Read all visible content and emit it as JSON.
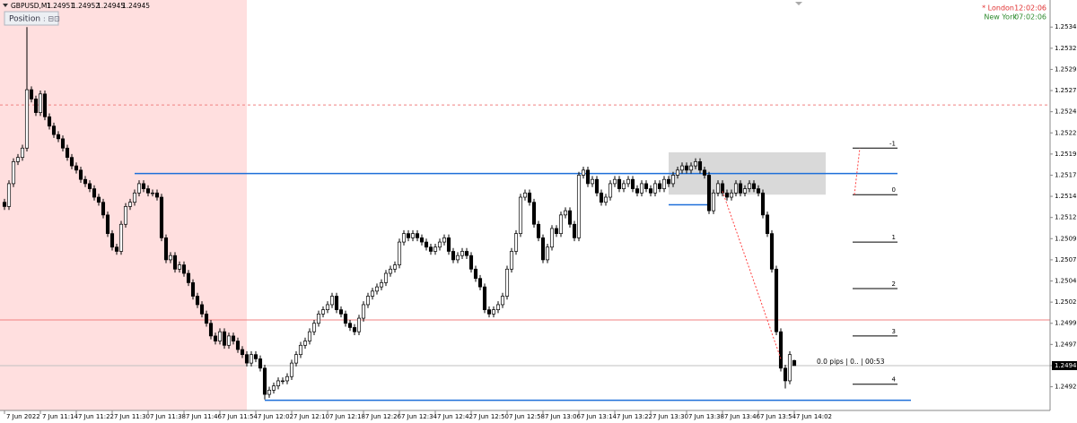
{
  "chart_data": {
    "type": "candlestick",
    "title": "GBPUSD,M1",
    "categories": [
      "7 Jun 2022",
      null,
      null,
      null,
      null,
      null,
      null,
      null,
      "7 Jun 11:14",
      null,
      null,
      null,
      null,
      null,
      null,
      null,
      "7 Jun 11:22",
      null,
      null,
      null,
      null,
      null,
      null,
      null,
      "7 Jun 11:30",
      null,
      null,
      null,
      null,
      null,
      null,
      null,
      "7 Jun 11:38",
      null,
      null,
      null,
      null,
      null,
      null,
      null,
      "7 Jun 11:46",
      null,
      null,
      null,
      null,
      null,
      null,
      null,
      "7 Jun 11:54",
      null,
      null,
      null,
      null,
      null,
      null,
      null,
      "7 Jun 12:02",
      null,
      null,
      null,
      null,
      null,
      null,
      null,
      "7 Jun 12:10",
      null,
      null,
      null,
      null,
      null,
      null,
      null,
      "7 Jun 12:18",
      null,
      null,
      null,
      null,
      null,
      null,
      null,
      "7 Jun 12:26",
      null,
      null,
      null,
      null,
      null,
      null,
      null,
      "7 Jun 12:34",
      null,
      null,
      null,
      null,
      null,
      null,
      null,
      "7 Jun 12:42",
      null,
      null,
      null,
      null,
      null,
      null,
      null,
      "7 Jun 12:50",
      null,
      null,
      null,
      null,
      null,
      null,
      null,
      "7 Jun 12:58",
      null,
      null,
      null,
      null,
      null,
      null,
      null,
      "7 Jun 13:06",
      null,
      null,
      null,
      null,
      null,
      null,
      null,
      "7 Jun 13:14",
      null,
      null,
      null,
      null,
      null,
      null,
      null,
      "7 Jun 13:22",
      null,
      null,
      null,
      null,
      null,
      null,
      null,
      "7 Jun 13:30",
      null,
      null,
      null,
      null,
      null,
      null,
      null,
      "7 Jun 13:38",
      null,
      null,
      null,
      null,
      null,
      null,
      null,
      "7 Jun 13:46",
      null,
      null,
      null,
      null,
      null,
      null,
      null,
      "7 Jun 13:54",
      null,
      null,
      null,
      null,
      null,
      null,
      null,
      "7 Jun 14:02"
    ],
    "open": [
      1.25138,
      1.25133,
      1.2516,
      1.25186,
      1.25191,
      1.25202,
      1.25271,
      1.2526,
      1.25244,
      1.25266,
      1.25239,
      1.25228,
      1.25218,
      1.25213,
      1.25202,
      1.25191,
      1.25181,
      1.25176,
      1.25165,
      1.2516,
      1.25154,
      1.25144,
      1.25138,
      1.25123,
      1.25101,
      1.25085,
      1.2508,
      1.25112,
      1.25133,
      1.25138,
      1.25149,
      1.2516,
      1.25154,
      1.25149,
      1.25149,
      1.25144,
      1.25096,
      1.2507,
      1.25075,
      1.25059,
      1.25064,
      1.25054,
      1.25043,
      1.25027,
      1.25017,
      1.25006,
      1.24995,
      1.2498,
      1.24974,
      1.24985,
      1.24969,
      1.2498,
      1.24974,
      1.24964,
      1.24958,
      1.24948,
      1.24958,
      1.24953,
      1.24942,
      1.24911,
      1.24916,
      1.24921,
      1.24927,
      1.24927,
      1.24932,
      1.24948,
      1.24958,
      1.24969,
      1.24974,
      1.24985,
      1.24995,
      1.25006,
      1.25011,
      1.25017,
      1.25027,
      1.25011,
      1.25006,
      1.24995,
      1.2499,
      1.24985,
      1.25001,
      1.25017,
      1.25027,
      1.25033,
      1.25038,
      1.25043,
      1.25054,
      1.25059,
      1.25064,
      1.25091,
      1.25101,
      1.25096,
      1.25101,
      1.25096,
      1.25091,
      1.25085,
      1.2508,
      1.25085,
      1.25091,
      1.25096,
      1.2508,
      1.2507,
      1.25075,
      1.2508,
      1.25075,
      1.25059,
      1.25048,
      1.25038,
      1.25011,
      1.25006,
      1.25011,
      1.25017,
      1.25027,
      1.25059,
      1.2508,
      1.25101,
      1.25144,
      1.25149,
      1.25138,
      1.25112,
      1.25096,
      1.2507,
      1.25085,
      1.25107,
      1.25101,
      1.25123,
      1.25128,
      1.25112,
      1.25096,
      1.2517,
      1.25176,
      1.2516,
      1.25165,
      1.25149,
      1.25138,
      1.25144,
      1.2516,
      1.25165,
      1.25154,
      1.2516,
      1.25165,
      1.25154,
      1.25149,
      1.2516,
      1.25154,
      1.25149,
      1.2516,
      1.25154,
      1.25165,
      1.2516,
      1.2517,
      1.25176,
      1.25181,
      1.25176,
      1.25181,
      1.25186,
      1.25176,
      1.2517,
      1.25128,
      1.25149,
      1.2516,
      1.25149,
      1.25144,
      1.25149,
      1.2516,
      1.25149,
      1.25154,
      1.2516,
      1.25154,
      1.25149,
      1.25123,
      1.25101,
      1.25059,
      1.24985,
      1.24942,
      1.24927,
      1.24951
    ],
    "high": [
      1.25142,
      1.25164,
      1.2519,
      1.25195,
      1.25206,
      1.25345,
      1.25275,
      1.25264,
      1.2527,
      1.2527,
      1.25243,
      1.25232,
      1.25222,
      1.25217,
      1.25206,
      1.25195,
      1.25185,
      1.2518,
      1.25169,
      1.25164,
      1.25158,
      1.25148,
      1.25142,
      1.25127,
      1.25105,
      1.25089,
      1.25116,
      1.25137,
      1.25142,
      1.25153,
      1.25164,
      1.25164,
      1.25158,
      1.25153,
      1.25153,
      1.25148,
      1.251,
      1.25079,
      1.25079,
      1.25068,
      1.25068,
      1.25058,
      1.25047,
      1.25031,
      1.25021,
      1.2501,
      1.24999,
      1.24984,
      1.24989,
      1.24989,
      1.24984,
      1.24984,
      1.24978,
      1.24968,
      1.24962,
      1.24962,
      1.24962,
      1.24957,
      1.24946,
      1.2492,
      1.24925,
      1.24931,
      1.24931,
      1.24936,
      1.24952,
      1.24962,
      1.24973,
      1.24978,
      1.24989,
      1.24999,
      1.2501,
      1.25015,
      1.25021,
      1.25031,
      1.25031,
      1.25015,
      1.2501,
      1.24999,
      1.24994,
      1.25005,
      1.25021,
      1.25031,
      1.25037,
      1.25042,
      1.25047,
      1.25058,
      1.25063,
      1.25068,
      1.25095,
      1.25105,
      1.25105,
      1.25105,
      1.25105,
      1.251,
      1.25095,
      1.25089,
      1.25089,
      1.25095,
      1.251,
      1.251,
      1.25084,
      1.25079,
      1.25084,
      1.25084,
      1.25079,
      1.25063,
      1.25052,
      1.25042,
      1.25015,
      1.25015,
      1.25021,
      1.25031,
      1.25063,
      1.25084,
      1.25105,
      1.25148,
      1.25153,
      1.25153,
      1.25142,
      1.25116,
      1.251,
      1.25089,
      1.25111,
      1.25111,
      1.25127,
      1.25132,
      1.25132,
      1.25116,
      1.25174,
      1.2518,
      1.2518,
      1.25169,
      1.25169,
      1.25153,
      1.25148,
      1.25164,
      1.25169,
      1.25169,
      1.25164,
      1.25169,
      1.25169,
      1.25158,
      1.25164,
      1.25164,
      1.25158,
      1.25164,
      1.25164,
      1.25169,
      1.25169,
      1.25174,
      1.2518,
      1.25185,
      1.25185,
      1.25185,
      1.2519,
      1.2519,
      1.2518,
      1.25174,
      1.25153,
      1.25164,
      1.25164,
      1.25153,
      1.25153,
      1.25164,
      1.25164,
      1.25158,
      1.25164,
      1.25164,
      1.25158,
      1.25153,
      1.25127,
      1.25105,
      1.25063,
      1.24989,
      1.24946,
      1.24962,
      1.24952
    ],
    "low": [
      1.25129,
      1.25129,
      1.25156,
      1.25182,
      1.25187,
      1.25198,
      1.25256,
      1.2524,
      1.2524,
      1.25235,
      1.25224,
      1.25214,
      1.25209,
      1.25198,
      1.25187,
      1.25177,
      1.25172,
      1.25161,
      1.25156,
      1.2515,
      1.2514,
      1.25134,
      1.25119,
      1.25097,
      1.25081,
      1.25076,
      1.25076,
      1.25108,
      1.25129,
      1.25134,
      1.25145,
      1.2515,
      1.25145,
      1.25145,
      1.2514,
      1.25092,
      1.25066,
      1.25066,
      1.25055,
      1.25055,
      1.2505,
      1.25039,
      1.25023,
      1.25013,
      1.25002,
      1.24991,
      1.24976,
      1.2497,
      1.2497,
      1.24965,
      1.24965,
      1.2497,
      1.2496,
      1.24954,
      1.24944,
      1.24944,
      1.24949,
      1.24938,
      1.24905,
      1.24907,
      1.24912,
      1.24917,
      1.24923,
      1.24923,
      1.24928,
      1.24944,
      1.24954,
      1.24965,
      1.2497,
      1.24981,
      1.24991,
      1.25002,
      1.25007,
      1.25013,
      1.25007,
      1.25002,
      1.24991,
      1.24986,
      1.24981,
      1.24981,
      1.24997,
      1.25013,
      1.25023,
      1.25029,
      1.25034,
      1.25039,
      1.2505,
      1.25055,
      1.2506,
      1.25087,
      1.25092,
      1.25092,
      1.25092,
      1.25087,
      1.25081,
      1.25076,
      1.25076,
      1.25081,
      1.25087,
      1.25076,
      1.25066,
      1.25066,
      1.25071,
      1.25071,
      1.25055,
      1.25044,
      1.25034,
      1.25007,
      1.25002,
      1.25002,
      1.25007,
      1.25013,
      1.25023,
      1.25055,
      1.25076,
      1.25097,
      1.2514,
      1.25134,
      1.25108,
      1.25092,
      1.25066,
      1.25066,
      1.25081,
      1.25097,
      1.25097,
      1.25119,
      1.25108,
      1.25092,
      1.25092,
      1.25166,
      1.25156,
      1.25156,
      1.25145,
      1.25134,
      1.25134,
      1.2514,
      1.25156,
      1.2515,
      1.2515,
      1.25156,
      1.2515,
      1.25145,
      1.25145,
      1.2515,
      1.25145,
      1.25145,
      1.2515,
      1.2515,
      1.25156,
      1.25156,
      1.25166,
      1.25172,
      1.25172,
      1.25172,
      1.25177,
      1.25172,
      1.25166,
      1.25124,
      1.25124,
      1.25145,
      1.25145,
      1.2514,
      1.2514,
      1.25145,
      1.25145,
      1.25145,
      1.2515,
      1.2515,
      1.25145,
      1.25119,
      1.25097,
      1.25055,
      1.24981,
      1.24938,
      1.24918,
      1.24923,
      1.24945
    ],
    "close": [
      1.25133,
      1.2516,
      1.25186,
      1.25191,
      1.25202,
      1.25271,
      1.2526,
      1.25244,
      1.25266,
      1.25239,
      1.25228,
      1.25218,
      1.25213,
      1.25202,
      1.25191,
      1.25181,
      1.25176,
      1.25165,
      1.2516,
      1.25154,
      1.25144,
      1.25138,
      1.25123,
      1.25101,
      1.25085,
      1.2508,
      1.25112,
      1.25133,
      1.25138,
      1.25149,
      1.2516,
      1.25154,
      1.25149,
      1.25149,
      1.25144,
      1.25096,
      1.2507,
      1.25075,
      1.25059,
      1.25064,
      1.25054,
      1.25043,
      1.25027,
      1.25017,
      1.25006,
      1.24995,
      1.2498,
      1.24974,
      1.24985,
      1.24969,
      1.2498,
      1.24974,
      1.24964,
      1.24958,
      1.24948,
      1.24958,
      1.24953,
      1.24942,
      1.24911,
      1.24916,
      1.24921,
      1.24927,
      1.24927,
      1.24932,
      1.24948,
      1.24958,
      1.24969,
      1.24974,
      1.24985,
      1.24995,
      1.25006,
      1.25011,
      1.25017,
      1.25027,
      1.25011,
      1.25006,
      1.24995,
      1.2499,
      1.24985,
      1.25001,
      1.25017,
      1.25027,
      1.25033,
      1.25038,
      1.25043,
      1.25054,
      1.25059,
      1.25064,
      1.25091,
      1.25101,
      1.25096,
      1.25101,
      1.25096,
      1.25091,
      1.25085,
      1.2508,
      1.25085,
      1.25091,
      1.25096,
      1.2508,
      1.2507,
      1.25075,
      1.2508,
      1.25075,
      1.25059,
      1.25048,
      1.25038,
      1.25011,
      1.25006,
      1.25011,
      1.25017,
      1.25027,
      1.25059,
      1.2508,
      1.25101,
      1.25144,
      1.25149,
      1.25138,
      1.25112,
      1.25096,
      1.2507,
      1.25085,
      1.25107,
      1.25101,
      1.25123,
      1.25128,
      1.25112,
      1.25096,
      1.2517,
      1.25176,
      1.2516,
      1.25165,
      1.25149,
      1.25138,
      1.25144,
      1.2516,
      1.25165,
      1.25154,
      1.2516,
      1.25165,
      1.25154,
      1.25149,
      1.2516,
      1.25154,
      1.25149,
      1.2516,
      1.25154,
      1.25165,
      1.2516,
      1.2517,
      1.25176,
      1.25181,
      1.25176,
      1.25181,
      1.25186,
      1.25176,
      1.2517,
      1.25128,
      1.25149,
      1.2516,
      1.25149,
      1.25144,
      1.25149,
      1.2516,
      1.25149,
      1.25154,
      1.2516,
      1.25154,
      1.25149,
      1.25123,
      1.25101,
      1.25059,
      1.24985,
      1.24942,
      1.24927,
      1.24958,
      1.24945
    ],
    "up_color": "#ffffff",
    "down_color": "#000000",
    "ylim": [
      1.24892,
      1.25377
    ],
    "yticks": [
      1.25345,
      {
        "value": 1.2532,
        "label": "1.25320"
      },
      1.25295,
      {
        "value": 1.2527,
        "label": "1.25270"
      },
      1.25245,
      {
        "value": 1.2522,
        "label": "1.25220"
      },
      1.25195,
      {
        "value": 1.2517,
        "label": "1.25170"
      },
      1.25145,
      {
        "value": 1.2512,
        "label": "1.25120"
      },
      1.25095,
      {
        "value": 1.2507,
        "label": "1.25070"
      },
      1.25045,
      {
        "value": 1.2502,
        "label": "1.25020"
      },
      1.24995,
      {
        "value": 1.2497,
        "label": "1.24970"
      },
      1.24945,
      {
        "value": 1.2492,
        "label": "1.24920"
      }
    ],
    "grid": false,
    "hlines": [
      {
        "value": 1.25172,
        "color": "#1e6fd9",
        "style": "solid"
      },
      {
        "value": 1.24904,
        "color": "#1e6fd9",
        "style": "solid"
      },
      {
        "value": 1.24999,
        "color": "#f08080",
        "style": "solid"
      },
      {
        "value": 1.25253,
        "color": "#f08080",
        "style": "dashed"
      },
      {
        "value": 1.25135,
        "color": "#1e6fd9",
        "style": "solid"
      }
    ],
    "box": {
      "top": 1.25197,
      "bottom": 1.25147,
      "color": "#d9d9d9"
    },
    "trendline": {
      "color": "#ff4040",
      "x": [
        160,
        173
      ],
      "y": [
        1.25151,
        1.24953
      ]
    },
    "fibo": [
      {
        "label": "-1",
        "value": 1.25202
      },
      {
        "label": "0",
        "value": 1.25147
      },
      {
        "label": "1",
        "value": 1.25091
      },
      {
        "label": "2",
        "value": 1.25036
      },
      {
        "label": "3",
        "value": 1.2498
      },
      {
        "label": "4",
        "value": 1.24923
      }
    ],
    "info_label": "0.0 pips | 0.. | 00:53"
  },
  "toolbar": {
    "position_button": "Position"
  },
  "clocks": [
    {
      "city": "* London",
      "time": "12:02:06",
      "color": "#e03030"
    },
    {
      "city": "New York",
      "time": "07:02:06",
      "color": "#2e8b2e"
    }
  ]
}
